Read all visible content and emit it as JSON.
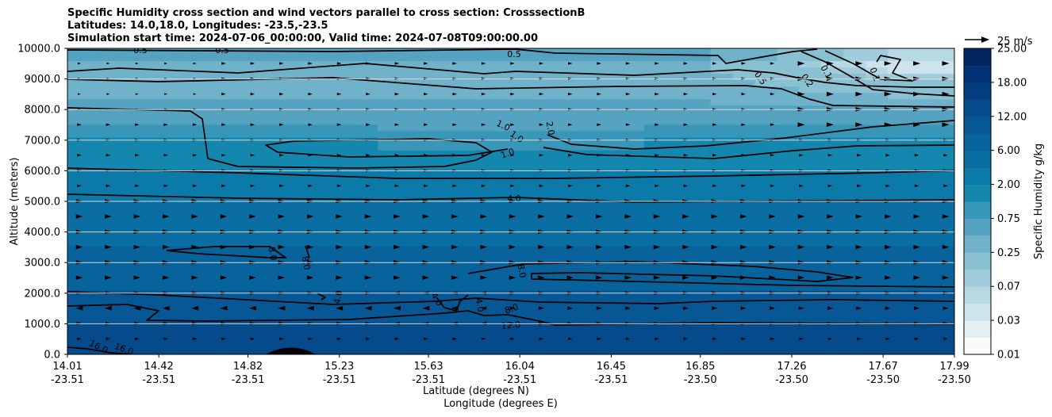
{
  "chart_data": {
    "type": "contour",
    "title_lines": [
      "Specific Humidity cross section and wind vectors parallel to cross section: CrosssectionB",
      "Latitudes: 14.0,18.0, Longitudes: -23.5,-23.5",
      "Simulation start time: 2024-07-06_00:00:00, Valid time: 2024-07-08T09:00:00.00"
    ],
    "ylabel": "Altitude (meters)",
    "xlabel_lines": [
      "Latitude (degrees N)",
      "Longitude (degrees E)"
    ],
    "ylim": [
      0,
      10000
    ],
    "xlim": [
      14.01,
      17.99
    ],
    "y_ticks": [
      0,
      1000,
      2000,
      3000,
      4000,
      5000,
      6000,
      7000,
      8000,
      9000,
      10000
    ],
    "y_tick_labels": [
      "0.0",
      "1000.0",
      "2000.0",
      "3000.0",
      "4000.0",
      "5000.0",
      "6000.0",
      "7000.0",
      "8000.0",
      "9000.0",
      "10000.0"
    ],
    "x_ticks": [
      {
        "lat": "14.01",
        "lon": "-23.51",
        "v": 14.01
      },
      {
        "lat": "14.42",
        "lon": "-23.51",
        "v": 14.42
      },
      {
        "lat": "14.82",
        "lon": "-23.51",
        "v": 14.82
      },
      {
        "lat": "15.23",
        "lon": "-23.51",
        "v": 15.23
      },
      {
        "lat": "15.63",
        "lon": "-23.51",
        "v": 15.63
      },
      {
        "lat": "16.04",
        "lon": "-23.51",
        "v": 16.04
      },
      {
        "lat": "16.45",
        "lon": "-23.51",
        "v": 16.45
      },
      {
        "lat": "16.85",
        "lon": "-23.50",
        "v": 16.85
      },
      {
        "lat": "17.26",
        "lon": "-23.50",
        "v": 17.26
      },
      {
        "lat": "17.67",
        "lon": "-23.50",
        "v": 17.67
      },
      {
        "lat": "17.99",
        "lon": "-23.50",
        "v": 17.99
      }
    ],
    "colorbar": {
      "label": "Specific Humidity g/kg",
      "levels": [
        0.01,
        0.02,
        0.03,
        0.05,
        0.07,
        0.1,
        0.25,
        0.5,
        0.75,
        1.0,
        2.0,
        4.0,
        6.0,
        8.0,
        12.0,
        16.0,
        18.0,
        20.0,
        25.0
      ],
      "tick_labels": [
        "0.01",
        "0.03",
        "0.07",
        "0.25",
        "0.75",
        "2.00",
        "6.00",
        "12.00",
        "18.00",
        "25.00"
      ],
      "colors": [
        "#f7fbfc",
        "#e3f0f4",
        "#cde4ec",
        "#b7d9e4",
        "#a0ccdb",
        "#89c0d2",
        "#70b2ca",
        "#55a3c0",
        "#3896b8",
        "#1487af",
        "#0c7aa8",
        "#0a6ea3",
        "#08629c",
        "#075794",
        "#054a8a",
        "#043d7f",
        "#033274",
        "#02245f"
      ]
    },
    "contour_labels": [
      "0.5",
      "0.5",
      "0.5",
      "0.5",
      "0.2",
      "0.1",
      "0.1",
      "1.0",
      "1.0",
      "1.0",
      "2.0",
      "4.0",
      "8.0",
      "8.0",
      "8.0",
      "4.0",
      "4.0",
      "4.0",
      "8.0",
      "12.0",
      "16.0",
      "16.0"
    ],
    "wind_reference": {
      "label": "25 m/s",
      "speed": 25
    }
  }
}
